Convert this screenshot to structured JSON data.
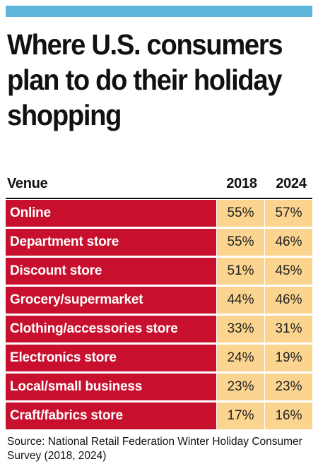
{
  "title": "Where U.S. consumers plan to do their holiday shopping",
  "source": "Source: National Retail Federation Winter Holiday Consumer Survey (2018, 2024)",
  "colors": {
    "top_bar": "#5db5dc",
    "venue_cell": "#c8102e",
    "value_cell": "#fbd58f"
  },
  "chart_data": {
    "type": "table",
    "title": "Where U.S. consumers plan to do their holiday shopping",
    "columns": [
      "Venue",
      "2018",
      "2024"
    ],
    "rows": [
      {
        "venue": "Online",
        "y2018": "55%",
        "y2024": "57%"
      },
      {
        "venue": "Department store",
        "y2018": "55%",
        "y2024": "46%"
      },
      {
        "venue": "Discount store",
        "y2018": "51%",
        "y2024": "45%"
      },
      {
        "venue": "Grocery/supermarket",
        "y2018": "44%",
        "y2024": "46%"
      },
      {
        "venue": "Clothing/accessories store",
        "y2018": "33%",
        "y2024": "31%"
      },
      {
        "venue": "Electronics store",
        "y2018": "24%",
        "y2024": "19%"
      },
      {
        "venue": "Local/small business",
        "y2018": "23%",
        "y2024": "23%"
      },
      {
        "venue": "Craft/fabrics store",
        "y2018": "17%",
        "y2024": "16%"
      }
    ]
  }
}
